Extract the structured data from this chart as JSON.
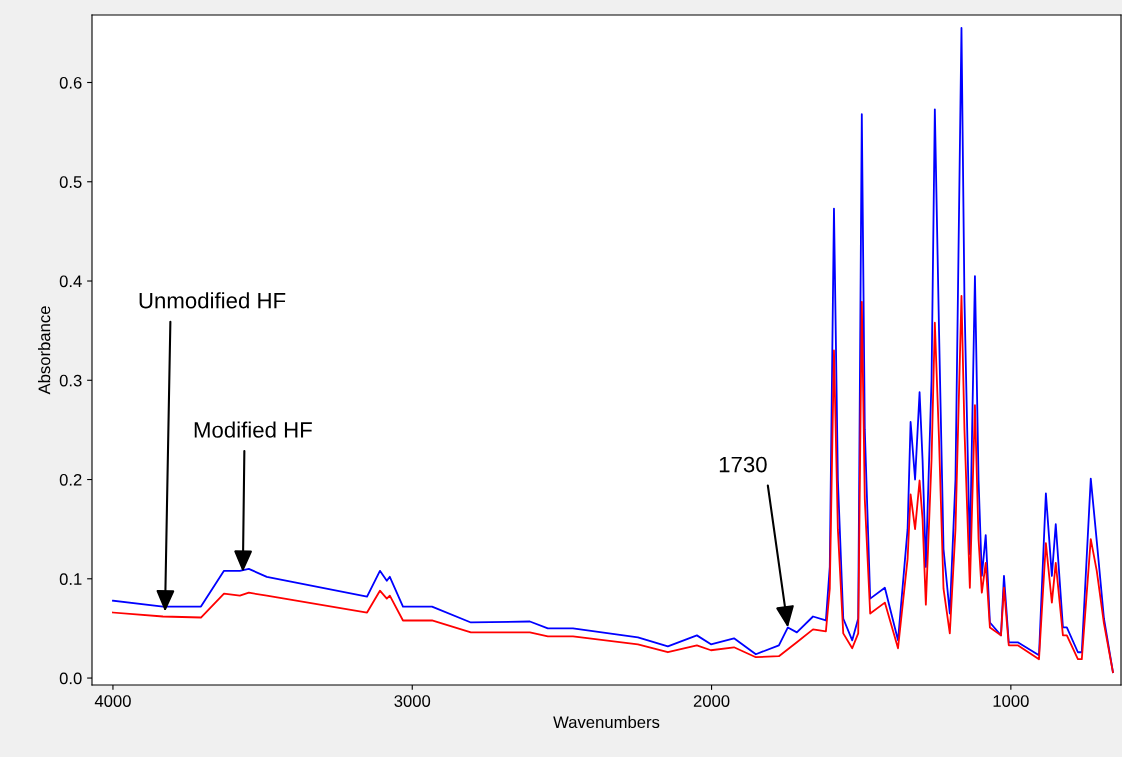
{
  "chart_data": {
    "type": "line",
    "xlabel": "Wavenumbers",
    "ylabel": "Absorbance",
    "x": [
      4000,
      3833,
      3706,
      3629,
      3576,
      3546,
      3486,
      3151,
      3108,
      3085,
      3075,
      3031,
      2934,
      2804,
      2607,
      2547,
      2463,
      2246,
      2146,
      2049,
      2002,
      1925,
      1852,
      1775,
      1745,
      1715,
      1661,
      1618,
      1605,
      1591,
      1578,
      1560,
      1530,
      1510,
      1498,
      1488,
      1470,
      1421,
      1377,
      1345,
      1335,
      1320,
      1305,
      1295,
      1284,
      1265,
      1254,
      1240,
      1225,
      1204,
      1185,
      1165,
      1155,
      1137,
      1120,
      1108,
      1097,
      1084,
      1070,
      1033,
      1023,
      1007,
      977,
      906,
      883,
      863,
      850,
      826,
      813,
      776,
      763,
      733,
      713,
      689,
      659
    ],
    "series": [
      {
        "color": "#0000ff",
        "values": [
          0.078,
          0.072,
          0.072,
          0.108,
          0.108,
          0.11,
          0.102,
          0.082,
          0.108,
          0.098,
          0.102,
          0.072,
          0.072,
          0.056,
          0.057,
          0.05,
          0.05,
          0.041,
          0.032,
          0.043,
          0.034,
          0.04,
          0.024,
          0.033,
          0.051,
          0.046,
          0.062,
          0.058,
          0.112,
          0.473,
          0.2,
          0.06,
          0.038,
          0.06,
          0.568,
          0.25,
          0.08,
          0.091,
          0.038,
          0.15,
          0.258,
          0.2,
          0.288,
          0.22,
          0.112,
          0.3,
          0.573,
          0.35,
          0.13,
          0.065,
          0.2,
          0.655,
          0.38,
          0.125,
          0.405,
          0.2,
          0.103,
          0.144,
          0.056,
          0.043,
          0.103,
          0.036,
          0.036,
          0.023,
          0.186,
          0.103,
          0.155,
          0.051,
          0.051,
          0.026,
          0.026,
          0.201,
          0.138,
          0.06,
          0.006
        ]
      },
      {
        "color": "#ff0000",
        "values": [
          0.066,
          0.062,
          0.061,
          0.085,
          0.083,
          0.086,
          0.083,
          0.066,
          0.088,
          0.08,
          0.083,
          0.058,
          0.058,
          0.046,
          0.046,
          0.042,
          0.042,
          0.034,
          0.026,
          0.033,
          0.028,
          0.031,
          0.021,
          0.022,
          0.029,
          0.036,
          0.049,
          0.047,
          0.09,
          0.33,
          0.15,
          0.045,
          0.03,
          0.045,
          0.379,
          0.18,
          0.065,
          0.076,
          0.03,
          0.12,
          0.185,
          0.15,
          0.199,
          0.16,
          0.074,
          0.22,
          0.358,
          0.24,
          0.09,
          0.045,
          0.15,
          0.385,
          0.25,
          0.091,
          0.275,
          0.14,
          0.086,
          0.116,
          0.051,
          0.043,
          0.091,
          0.033,
          0.033,
          0.019,
          0.136,
          0.076,
          0.116,
          0.043,
          0.043,
          0.019,
          0.019,
          0.14,
          0.108,
          0.055,
          0.006
        ]
      }
    ],
    "xlim": [
      4070,
      632
    ],
    "xticks": [
      4000,
      3000,
      2000,
      1000
    ],
    "ylim": [
      -0.007,
      0.668
    ],
    "yticks": [
      {
        "value": 0,
        "label": "0.0"
      },
      0.1,
      0.2,
      0.3,
      0.4,
      0.5,
      0.6
    ],
    "annotations": [
      {
        "text": "Unmodified HF",
        "x": 3826,
        "y": 0.067
      },
      {
        "text": "Modified HF",
        "x": 3566,
        "y": 0.107
      },
      {
        "text": "1730",
        "x": 1745,
        "y": 0.051
      }
    ],
    "grid": false,
    "legend": false
  }
}
